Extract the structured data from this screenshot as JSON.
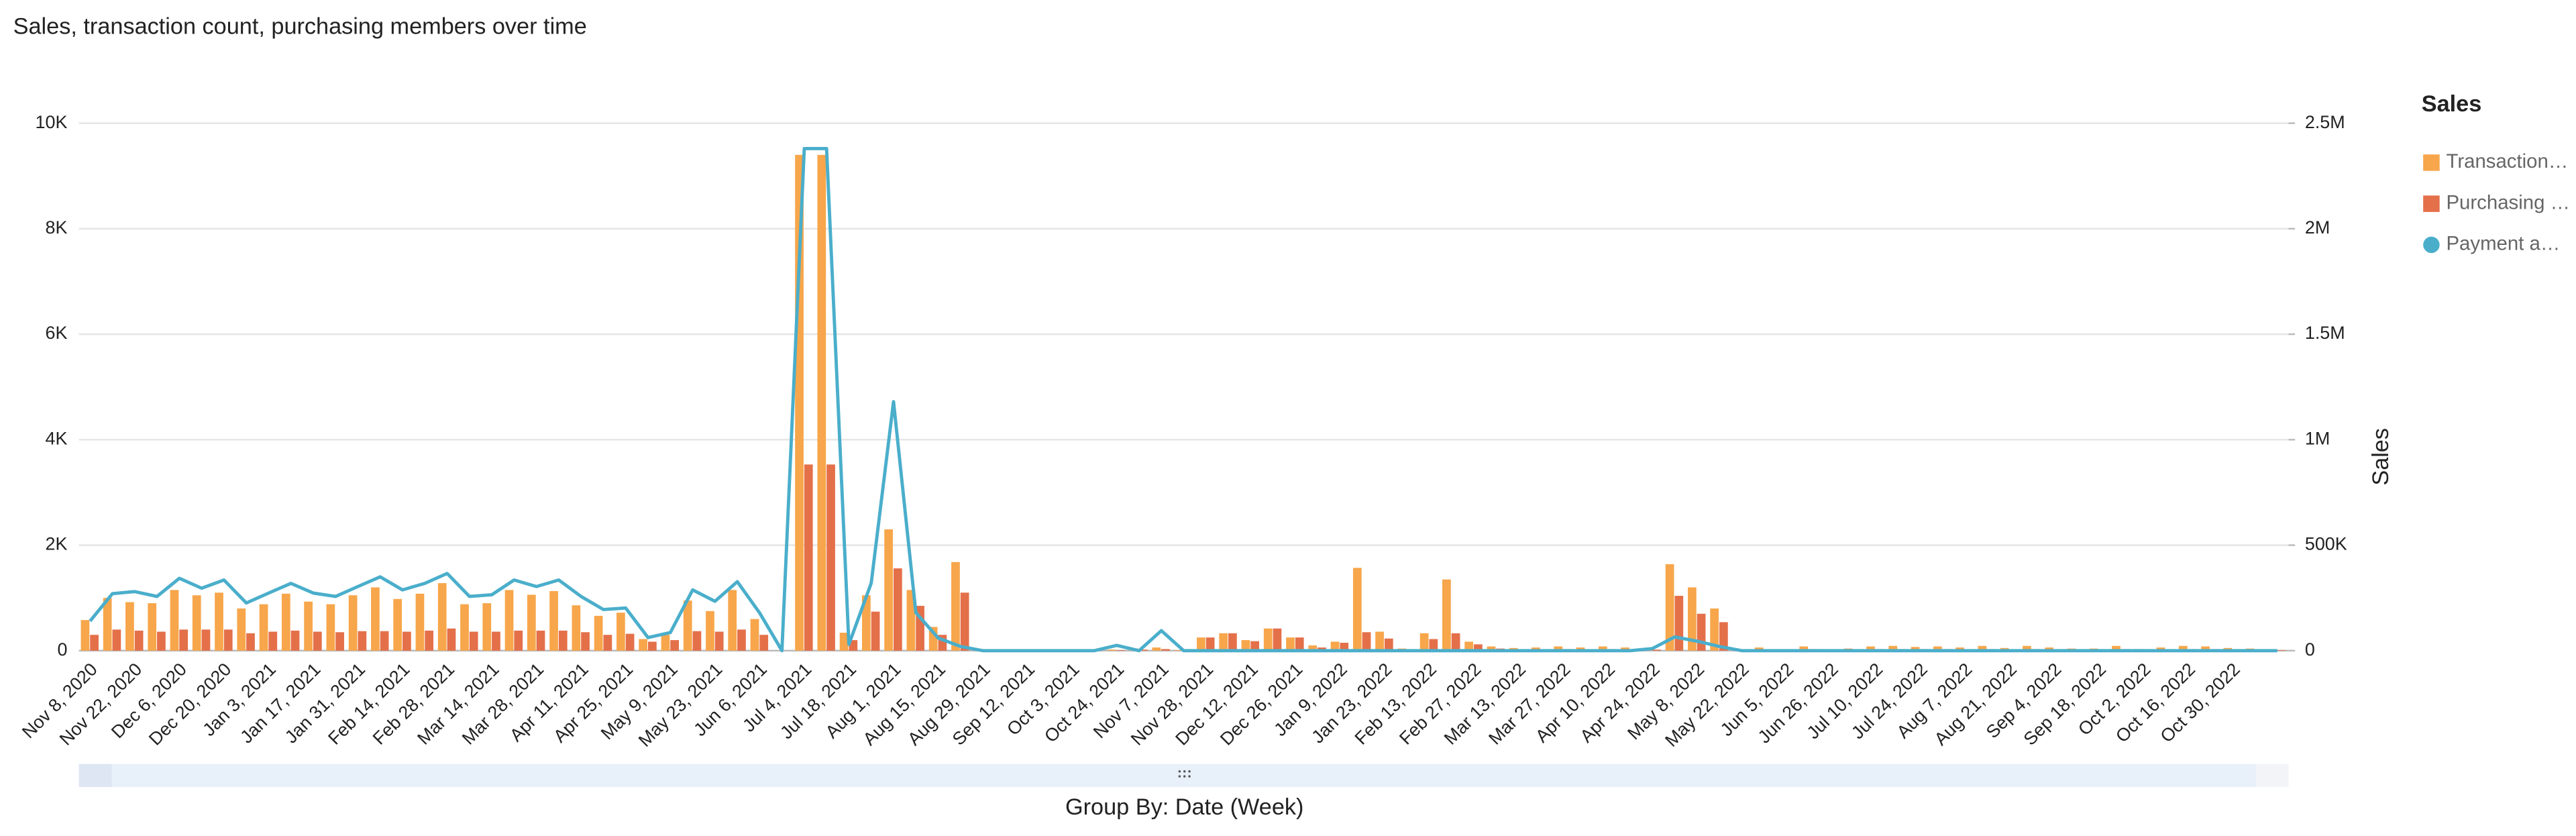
{
  "chart_data": {
    "type": "bar",
    "title": "Sales, transaction count, purchasing members over time",
    "xlabel": "Group By: Date (Week)",
    "y2label": "Sales",
    "legend_title": "Sales",
    "legend": "right",
    "grid": true,
    "categories": [
      "Nov 8, 2020",
      null,
      "Nov 22, 2020",
      null,
      "Dec 6, 2020",
      null,
      "Dec 20, 2020",
      null,
      "Jan 3, 2021",
      null,
      "Jan 17, 2021",
      null,
      "Jan 31, 2021",
      null,
      "Feb 14, 2021",
      null,
      "Feb 28, 2021",
      null,
      "Mar 14, 2021",
      null,
      "Mar 28, 2021",
      null,
      "Apr 11, 2021",
      null,
      "Apr 25, 2021",
      null,
      "May 9, 2021",
      null,
      "May 23, 2021",
      null,
      "Jun 6, 2021",
      null,
      "Jul 4, 2021",
      null,
      "Jul 18, 2021",
      null,
      "Aug 1, 2021",
      null,
      "Aug 15, 2021",
      null,
      "Aug 29, 2021",
      null,
      "Sep 12, 2021",
      null,
      "Oct 3, 2021",
      null,
      "Oct 24, 2021",
      null,
      "Nov 7, 2021",
      null,
      "Nov 28, 2021",
      null,
      "Dec 12, 2021",
      null,
      "Dec 26, 2021",
      null,
      "Jan 9, 2022",
      null,
      "Jan 23, 2022",
      null,
      "Feb 13, 2022",
      null,
      "Feb 27, 2022",
      null,
      "Mar 13, 2022",
      null,
      "Mar 27, 2022",
      null,
      "Apr 10, 2022",
      null,
      "Apr 24, 2022",
      null,
      "May 8, 2022",
      null,
      "May 22, 2022",
      null,
      "Jun 5, 2022",
      null,
      "Jun 26, 2022",
      null,
      "Jul 10, 2022",
      null,
      "Jul 24, 2022",
      null,
      "Aug 7, 2022",
      null,
      "Aug 21, 2022",
      null,
      "Sep 4, 2022",
      null,
      "Sep 18, 2022",
      null,
      "Oct 2, 2022",
      null,
      "Oct 16, 2022",
      null,
      "Oct 30, 2022",
      null,
      null
    ],
    "series": [
      {
        "name": "Transaction…",
        "type": "bar",
        "color": "#f7a64b",
        "values": [
          580,
          1000,
          920,
          900,
          1150,
          1050,
          1100,
          800,
          880,
          1080,
          930,
          880,
          1050,
          1200,
          980,
          1080,
          1280,
          880,
          900,
          1150,
          1060,
          1130,
          860,
          660,
          720,
          220,
          300,
          950,
          750,
          1150,
          600,
          0,
          9400,
          9400,
          340,
          1050,
          2300,
          1150,
          450,
          1680,
          0,
          0,
          0,
          0,
          0,
          0,
          20,
          40,
          60,
          10,
          250,
          330,
          200,
          420,
          250,
          100,
          170,
          1570,
          360,
          40,
          330,
          1350,
          170,
          80,
          50,
          60,
          80,
          60,
          80,
          60,
          40,
          1640,
          1200,
          800,
          30,
          60,
          0,
          80,
          0,
          40,
          80,
          90,
          70,
          80,
          60,
          90,
          50,
          90,
          60,
          40,
          40,
          90,
          30,
          60,
          90,
          80,
          50,
          40,
          20
        ]
      },
      {
        "name": "Purchasing …",
        "type": "bar",
        "color": "#e4704a",
        "values": [
          300,
          400,
          380,
          360,
          400,
          400,
          400,
          330,
          360,
          380,
          360,
          350,
          370,
          370,
          360,
          380,
          420,
          360,
          360,
          380,
          380,
          380,
          350,
          300,
          320,
          170,
          200,
          370,
          360,
          400,
          300,
          0,
          3530,
          3530,
          200,
          740,
          1560,
          850,
          300,
          1100,
          0,
          0,
          0,
          0,
          0,
          0,
          10,
          20,
          30,
          5,
          250,
          330,
          180,
          420,
          250,
          60,
          150,
          350,
          230,
          20,
          220,
          330,
          120,
          40,
          20,
          20,
          30,
          20,
          30,
          20,
          20,
          1040,
          700,
          540,
          10,
          20,
          0,
          30,
          0,
          20,
          30,
          30,
          30,
          30,
          20,
          30,
          20,
          30,
          20,
          20,
          20,
          30,
          10,
          20,
          30,
          30,
          20,
          20,
          10
        ]
      },
      {
        "name": "Payment a…",
        "type": "line",
        "axis": "y2",
        "color": "#4aaecb",
        "values": [
          140000,
          270000,
          280000,
          257000,
          343000,
          296000,
          335000,
          226000,
          273000,
          319000,
          273000,
          257000,
          304000,
          350000,
          288000,
          319000,
          366000,
          257000,
          265000,
          335000,
          304000,
          335000,
          257000,
          195000,
          202000,
          62000,
          86000,
          288000,
          234000,
          327000,
          179000,
          0,
          2380000,
          2380000,
          30000,
          320000,
          1180000,
          180000,
          60000,
          20000,
          0,
          0,
          0,
          0,
          0,
          0,
          25000,
          0,
          95000,
          0,
          0,
          0,
          0,
          0,
          0,
          0,
          0,
          0,
          0,
          0,
          0,
          0,
          0,
          0,
          0,
          0,
          0,
          0,
          0,
          0,
          10000,
          65000,
          45000,
          20000,
          0,
          0,
          0,
          0,
          0,
          0,
          0,
          0,
          0,
          0,
          0,
          0,
          0,
          0,
          0,
          0,
          0,
          0,
          0,
          0,
          0,
          0,
          0,
          0,
          0
        ]
      }
    ],
    "ylim": [
      0,
      10000
    ],
    "yticks": [
      0,
      {
        "value": 2000,
        "label": "2K"
      },
      {
        "value": 4000,
        "label": "4K"
      },
      {
        "value": 6000,
        "label": "6K"
      },
      {
        "value": 8000,
        "label": "8K"
      },
      {
        "value": 10000,
        "label": "10K"
      }
    ],
    "y2lim": [
      0,
      2500000
    ],
    "y2ticks": [
      0,
      {
        "value": 500000,
        "label": "500K"
      },
      {
        "value": 1000000,
        "label": "1M"
      },
      {
        "value": 1500000,
        "label": "1.5M"
      },
      {
        "value": 2000000,
        "label": "2M"
      },
      {
        "value": 2500000,
        "label": "2.5M"
      }
    ]
  }
}
